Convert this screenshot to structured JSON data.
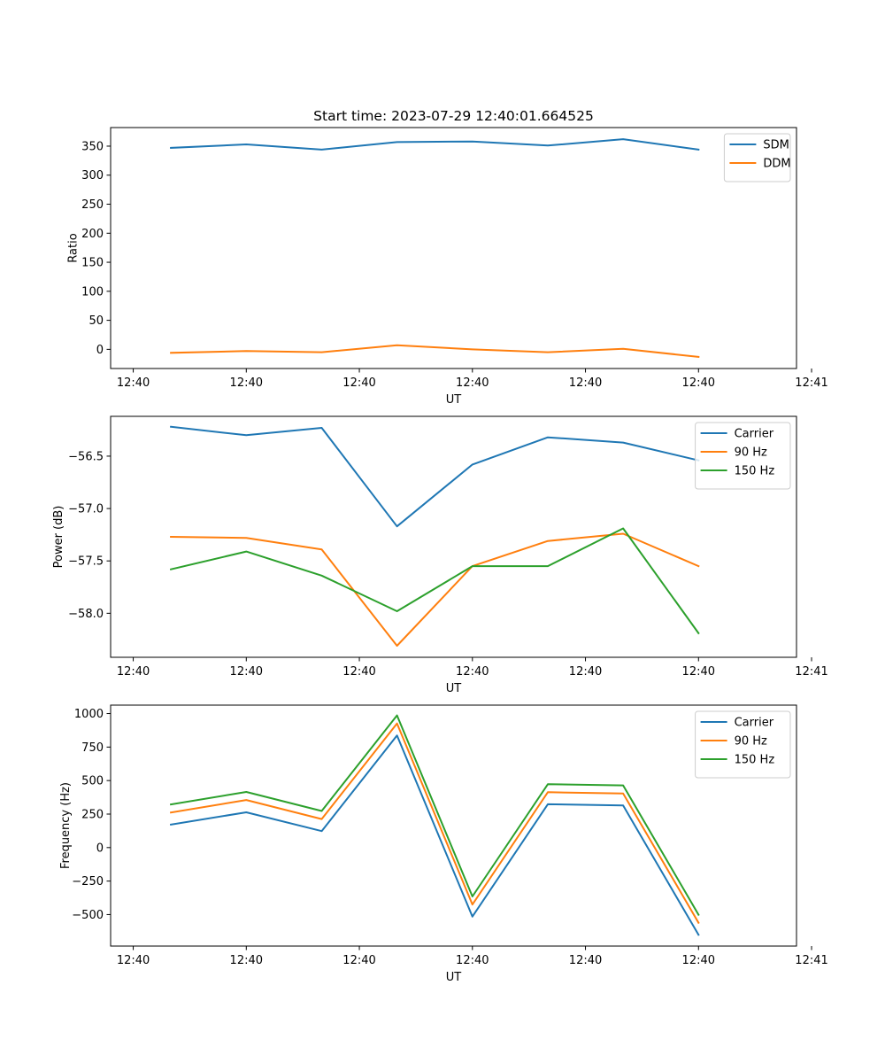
{
  "chart_data": [
    {
      "type": "line",
      "title": "Start time: 2023-07-29 12:40:01.664525",
      "xlabel": "UT",
      "ylabel": "Ratio",
      "xlim": [
        -0.8,
        8.3
      ],
      "ylim": [
        -33,
        382
      ],
      "x_ticks": [
        -0.5,
        1,
        2.5,
        4,
        5.5,
        7,
        8.5
      ],
      "x_tick_labels": [
        "12:40",
        "12:40",
        "12:40",
        "12:40",
        "12:40",
        "12:40",
        "12:41"
      ],
      "y_ticks": [
        0,
        50,
        100,
        150,
        200,
        250,
        300,
        350
      ],
      "y_tick_labels": [
        "0",
        "50",
        "100",
        "150",
        "200",
        "250",
        "300",
        "350"
      ],
      "legend_position": "top-right",
      "x": [
        0,
        1,
        2,
        3,
        4,
        5,
        6,
        7
      ],
      "series": [
        {
          "name": "SDM",
          "color": "#1f77b4",
          "values": [
            347,
            353,
            344,
            357,
            358,
            351,
            362,
            344
          ]
        },
        {
          "name": "DDM",
          "color": "#ff7f0e",
          "values": [
            -6,
            -3,
            -5,
            7,
            0,
            -5,
            1,
            -13
          ]
        }
      ]
    },
    {
      "type": "line",
      "title": "",
      "xlabel": "UT",
      "ylabel": "Power (dB)",
      "xlim": [
        -0.8,
        8.3
      ],
      "ylim": [
        -58.42,
        -56.12
      ],
      "x_ticks": [
        -0.5,
        1,
        2.5,
        4,
        5.5,
        7,
        8.5
      ],
      "x_tick_labels": [
        "12:40",
        "12:40",
        "12:40",
        "12:40",
        "12:40",
        "12:40",
        "12:41"
      ],
      "y_ticks": [
        -56.5,
        -57.0,
        -57.5,
        -58.0
      ],
      "y_tick_labels": [
        "−56.5",
        "−57.0",
        "−57.5",
        "−58.0"
      ],
      "legend_position": "top-right",
      "x": [
        0,
        1,
        2,
        3,
        4,
        5,
        6,
        7
      ],
      "series": [
        {
          "name": "Carrier",
          "color": "#1f77b4",
          "values": [
            -56.22,
            -56.3,
            -56.23,
            -57.17,
            -56.58,
            -56.32,
            -56.37,
            -56.54
          ]
        },
        {
          "name": "90 Hz",
          "color": "#ff7f0e",
          "values": [
            -57.27,
            -57.28,
            -57.39,
            -58.31,
            -57.55,
            -57.31,
            -57.24,
            -57.55
          ]
        },
        {
          "name": "150 Hz",
          "color": "#2ca02c",
          "values": [
            -57.58,
            -57.41,
            -57.64,
            -57.98,
            -57.55,
            -57.55,
            -57.19,
            -58.19
          ]
        }
      ]
    },
    {
      "type": "line",
      "title": "",
      "xlabel": "UT",
      "ylabel": "Frequency (Hz)",
      "xlim": [
        -0.8,
        8.3
      ],
      "ylim": [
        -735,
        1063
      ],
      "x_ticks": [
        -0.5,
        1,
        2.5,
        4,
        5.5,
        7,
        8.5
      ],
      "x_tick_labels": [
        "12:40",
        "12:40",
        "12:40",
        "12:40",
        "12:40",
        "12:40",
        "12:41"
      ],
      "y_ticks": [
        -500,
        -250,
        0,
        250,
        500,
        750,
        1000
      ],
      "y_tick_labels": [
        "−500",
        "−250",
        "0",
        "250",
        "500",
        "750",
        "1000"
      ],
      "legend_position": "top-right",
      "x": [
        0,
        1,
        2,
        3,
        4,
        5,
        6,
        7
      ],
      "series": [
        {
          "name": "Carrier",
          "color": "#1f77b4",
          "values": [
            172,
            263,
            123,
            836,
            -515,
            323,
            314,
            -651
          ]
        },
        {
          "name": "90 Hz",
          "color": "#ff7f0e",
          "values": [
            262,
            355,
            213,
            926,
            -425,
            413,
            404,
            -561
          ]
        },
        {
          "name": "150 Hz",
          "color": "#2ca02c",
          "values": [
            322,
            415,
            273,
            986,
            -365,
            473,
            464,
            -501
          ]
        }
      ]
    }
  ]
}
